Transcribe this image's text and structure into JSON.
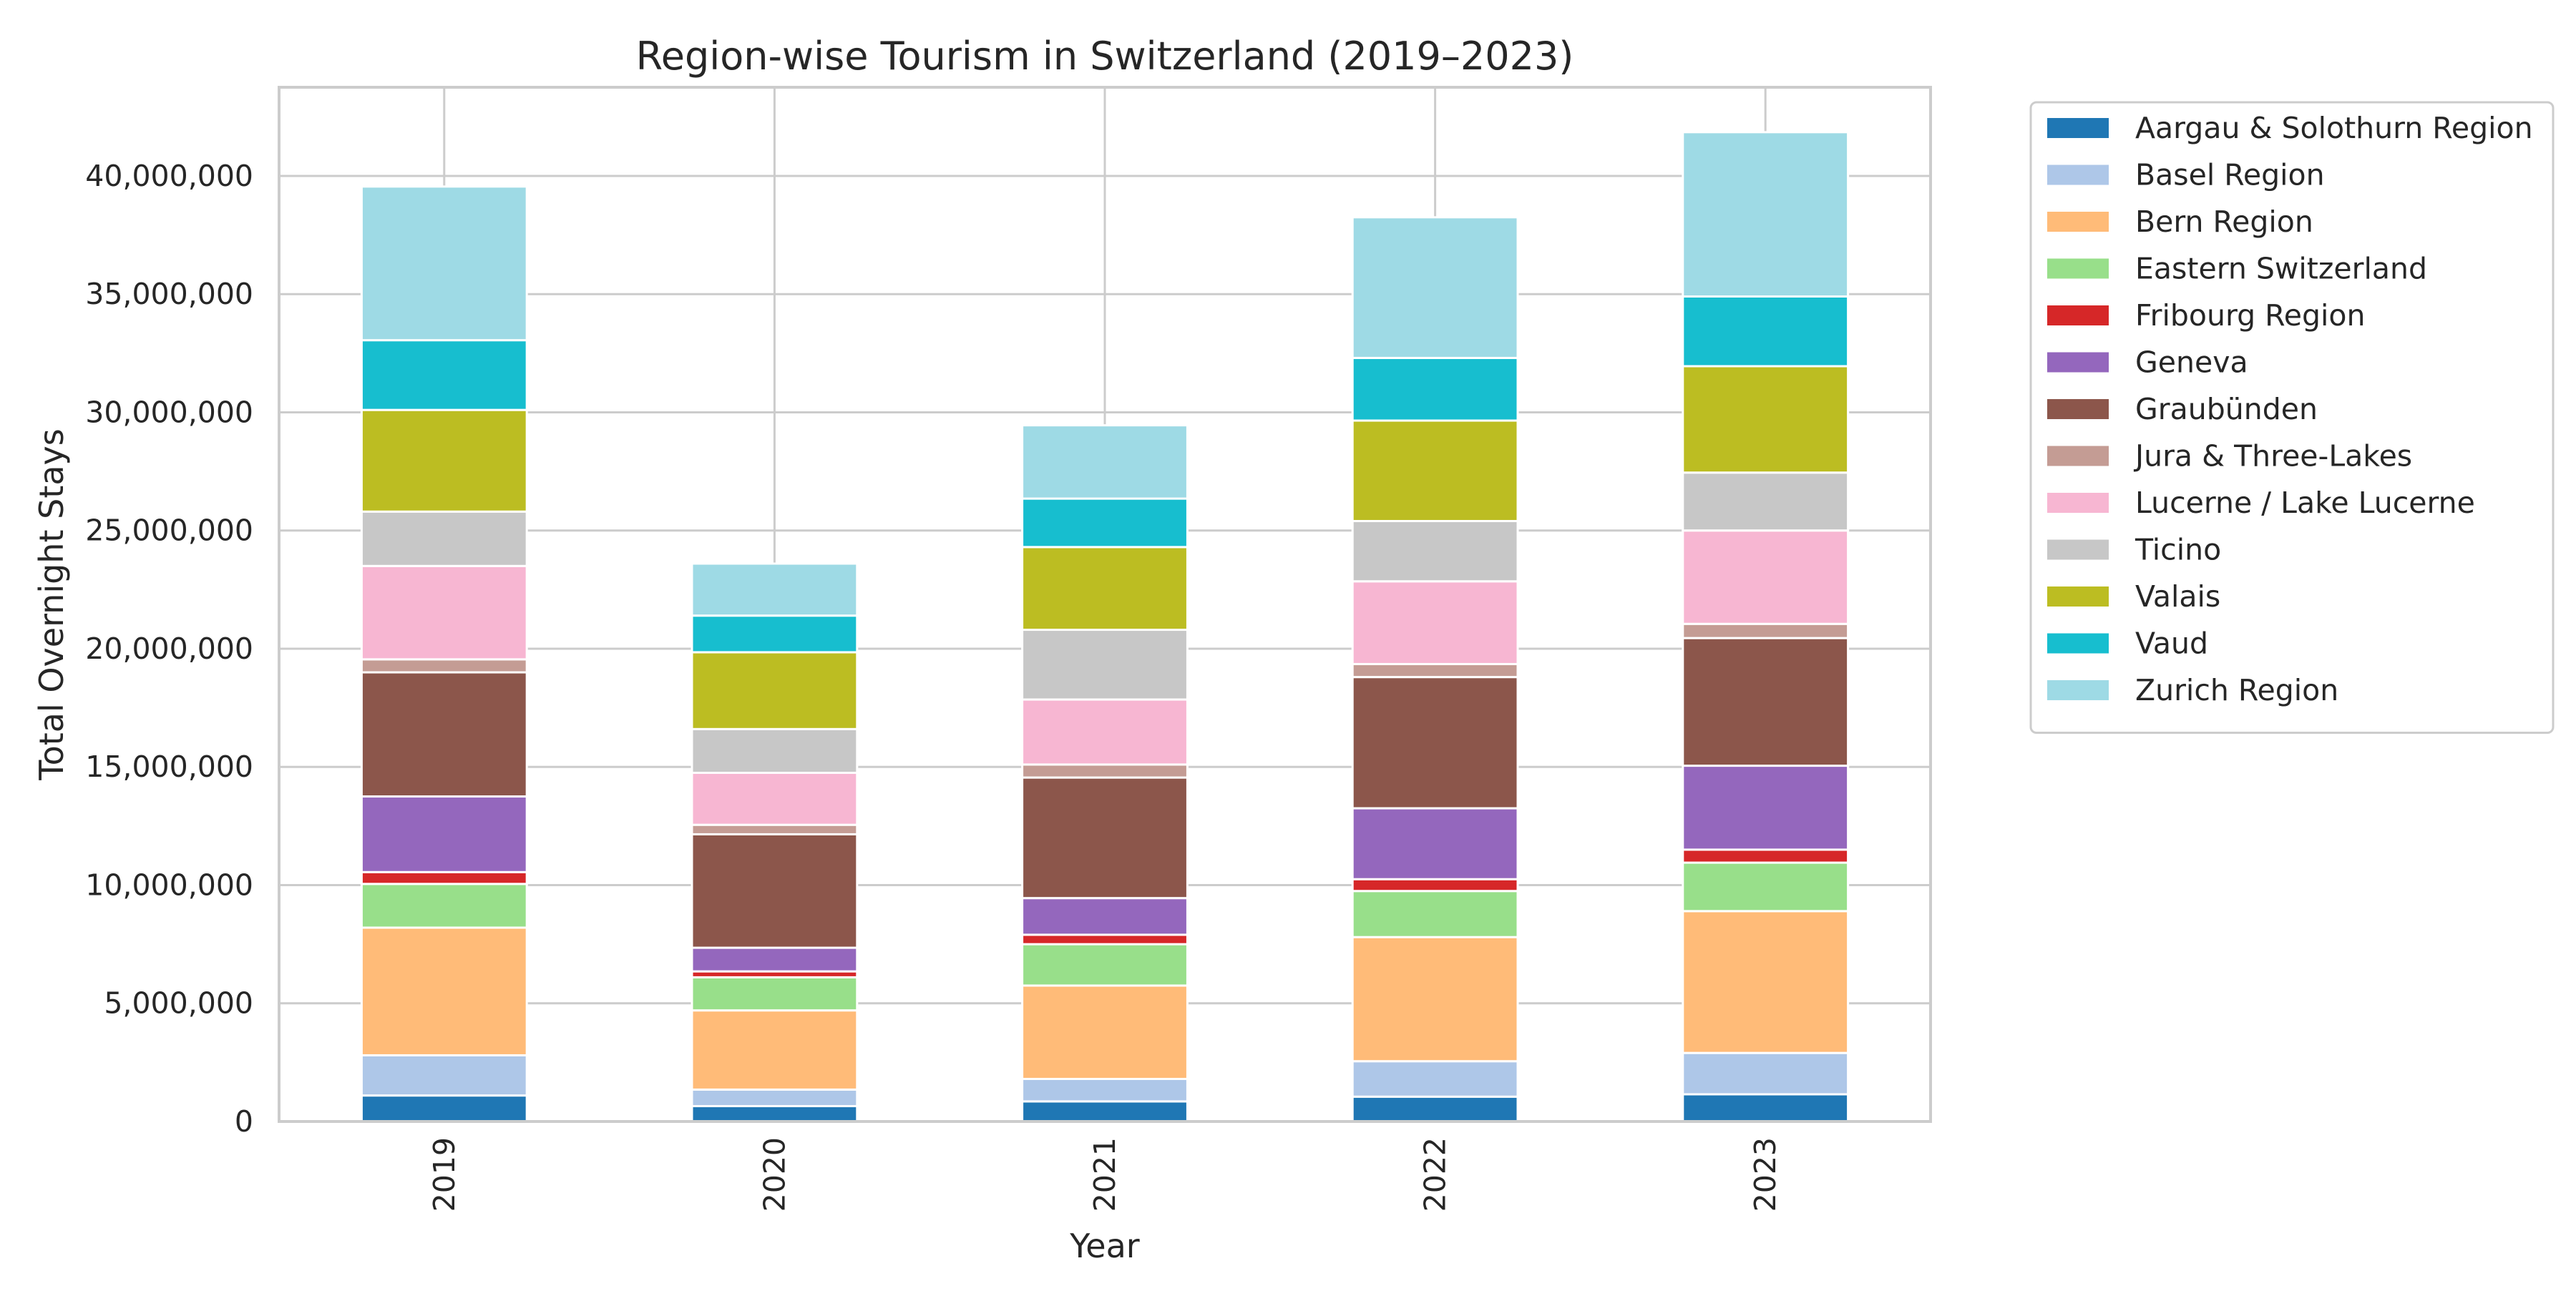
{
  "chart_data": {
    "type": "bar",
    "stacked": true,
    "title": "Region-wise Tourism in Switzerland (2019–2023)",
    "xlabel": "Year",
    "ylabel": "Total Overnight Stays",
    "categories": [
      "2019",
      "2020",
      "2021",
      "2022",
      "2023"
    ],
    "ylim": [
      0,
      43750000
    ],
    "yticks": [
      0,
      5000000,
      10000000,
      15000000,
      20000000,
      25000000,
      30000000,
      35000000,
      40000000
    ],
    "ytick_labels": [
      "0",
      "5,000,000",
      "10,000,000",
      "15,000,000",
      "20,000,000",
      "25,000,000",
      "30,000,000",
      "35,000,000",
      "40,000,000"
    ],
    "grid": true,
    "legend_position": "outside-right",
    "series": [
      {
        "name": "Aargau & Solothurn Region",
        "color": "#1f77b4",
        "values": [
          1100000,
          650000,
          850000,
          1050000,
          1150000
        ]
      },
      {
        "name": "Basel Region",
        "color": "#aec7e8",
        "values": [
          1700000,
          700000,
          950000,
          1500000,
          1750000
        ]
      },
      {
        "name": "Bern Region",
        "color": "#ffbb78",
        "values": [
          5400000,
          3350000,
          3950000,
          5250000,
          6000000
        ]
      },
      {
        "name": "Eastern Switzerland",
        "color": "#98df8a",
        "values": [
          1850000,
          1400000,
          1750000,
          1950000,
          2050000
        ]
      },
      {
        "name": "Fribourg Region",
        "color": "#d62728",
        "values": [
          500000,
          250000,
          400000,
          500000,
          550000
        ]
      },
      {
        "name": "Geneva",
        "color": "#9467bd",
        "values": [
          3200000,
          1000000,
          1550000,
          3000000,
          3550000
        ]
      },
      {
        "name": "Graubünden",
        "color": "#8c564b",
        "values": [
          5250000,
          4800000,
          5100000,
          5550000,
          5400000
        ]
      },
      {
        "name": "Jura & Three-Lakes",
        "color": "#c49c94",
        "values": [
          550000,
          400000,
          550000,
          550000,
          600000
        ]
      },
      {
        "name": "Lucerne / Lake Lucerne",
        "color": "#f7b6d2",
        "values": [
          3950000,
          2200000,
          2750000,
          3500000,
          3950000
        ]
      },
      {
        "name": "Ticino",
        "color": "#c7c7c7",
        "values": [
          2300000,
          1850000,
          2950000,
          2550000,
          2450000
        ]
      },
      {
        "name": "Valais",
        "color": "#bcbd22",
        "values": [
          4300000,
          3250000,
          3500000,
          4250000,
          4500000
        ]
      },
      {
        "name": "Vaud",
        "color": "#17becf",
        "values": [
          2950000,
          1550000,
          2050000,
          2650000,
          2950000
        ]
      },
      {
        "name": "Zurich Region",
        "color": "#9edae5",
        "values": [
          6500000,
          2200000,
          3100000,
          5950000,
          6950000
        ]
      }
    ]
  }
}
